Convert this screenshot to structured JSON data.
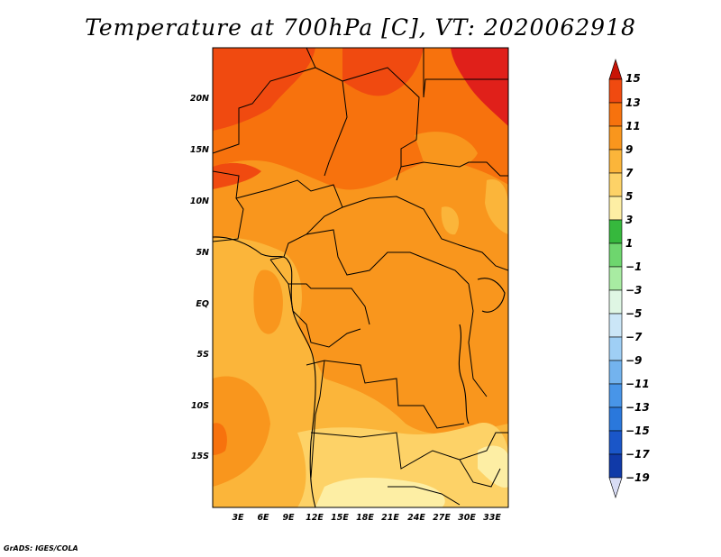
{
  "title": "Temperature at 700hPa [C], VT: 2020062918",
  "credit": "GrADS: IGES/COLA",
  "lat_labels": [
    "20N",
    "15N",
    "10N",
    "5N",
    "EQ",
    "5S",
    "10S",
    "15S"
  ],
  "lon_labels": [
    "3E",
    "6E",
    "9E",
    "12E",
    "15E",
    "18E",
    "21E",
    "24E",
    "27E",
    "30E",
    "33E"
  ],
  "colorbar": {
    "labels": [
      "15",
      "13",
      "11",
      "9",
      "7",
      "5",
      "3",
      "1",
      "−1",
      "−3",
      "−5",
      "−7",
      "−9",
      "−11",
      "−13",
      "−15",
      "−17",
      "−19"
    ],
    "colors": [
      "#e0201a",
      "#f04a10",
      "#f7720d",
      "#f9961d",
      "#fbb53a",
      "#fdd267",
      "#fdeea4",
      "#36b83d",
      "#6ed66e",
      "#a8eca2",
      "#dff6e4",
      "#cbe6f7",
      "#9fcff5",
      "#73b3ee",
      "#4895e8",
      "#2a78dc",
      "#1a56c8",
      "#103aa8",
      "#0a1e7c"
    ],
    "top_arrow_color": "#c81406",
    "bottom_arrow_color": "#d8dcf5"
  }
}
